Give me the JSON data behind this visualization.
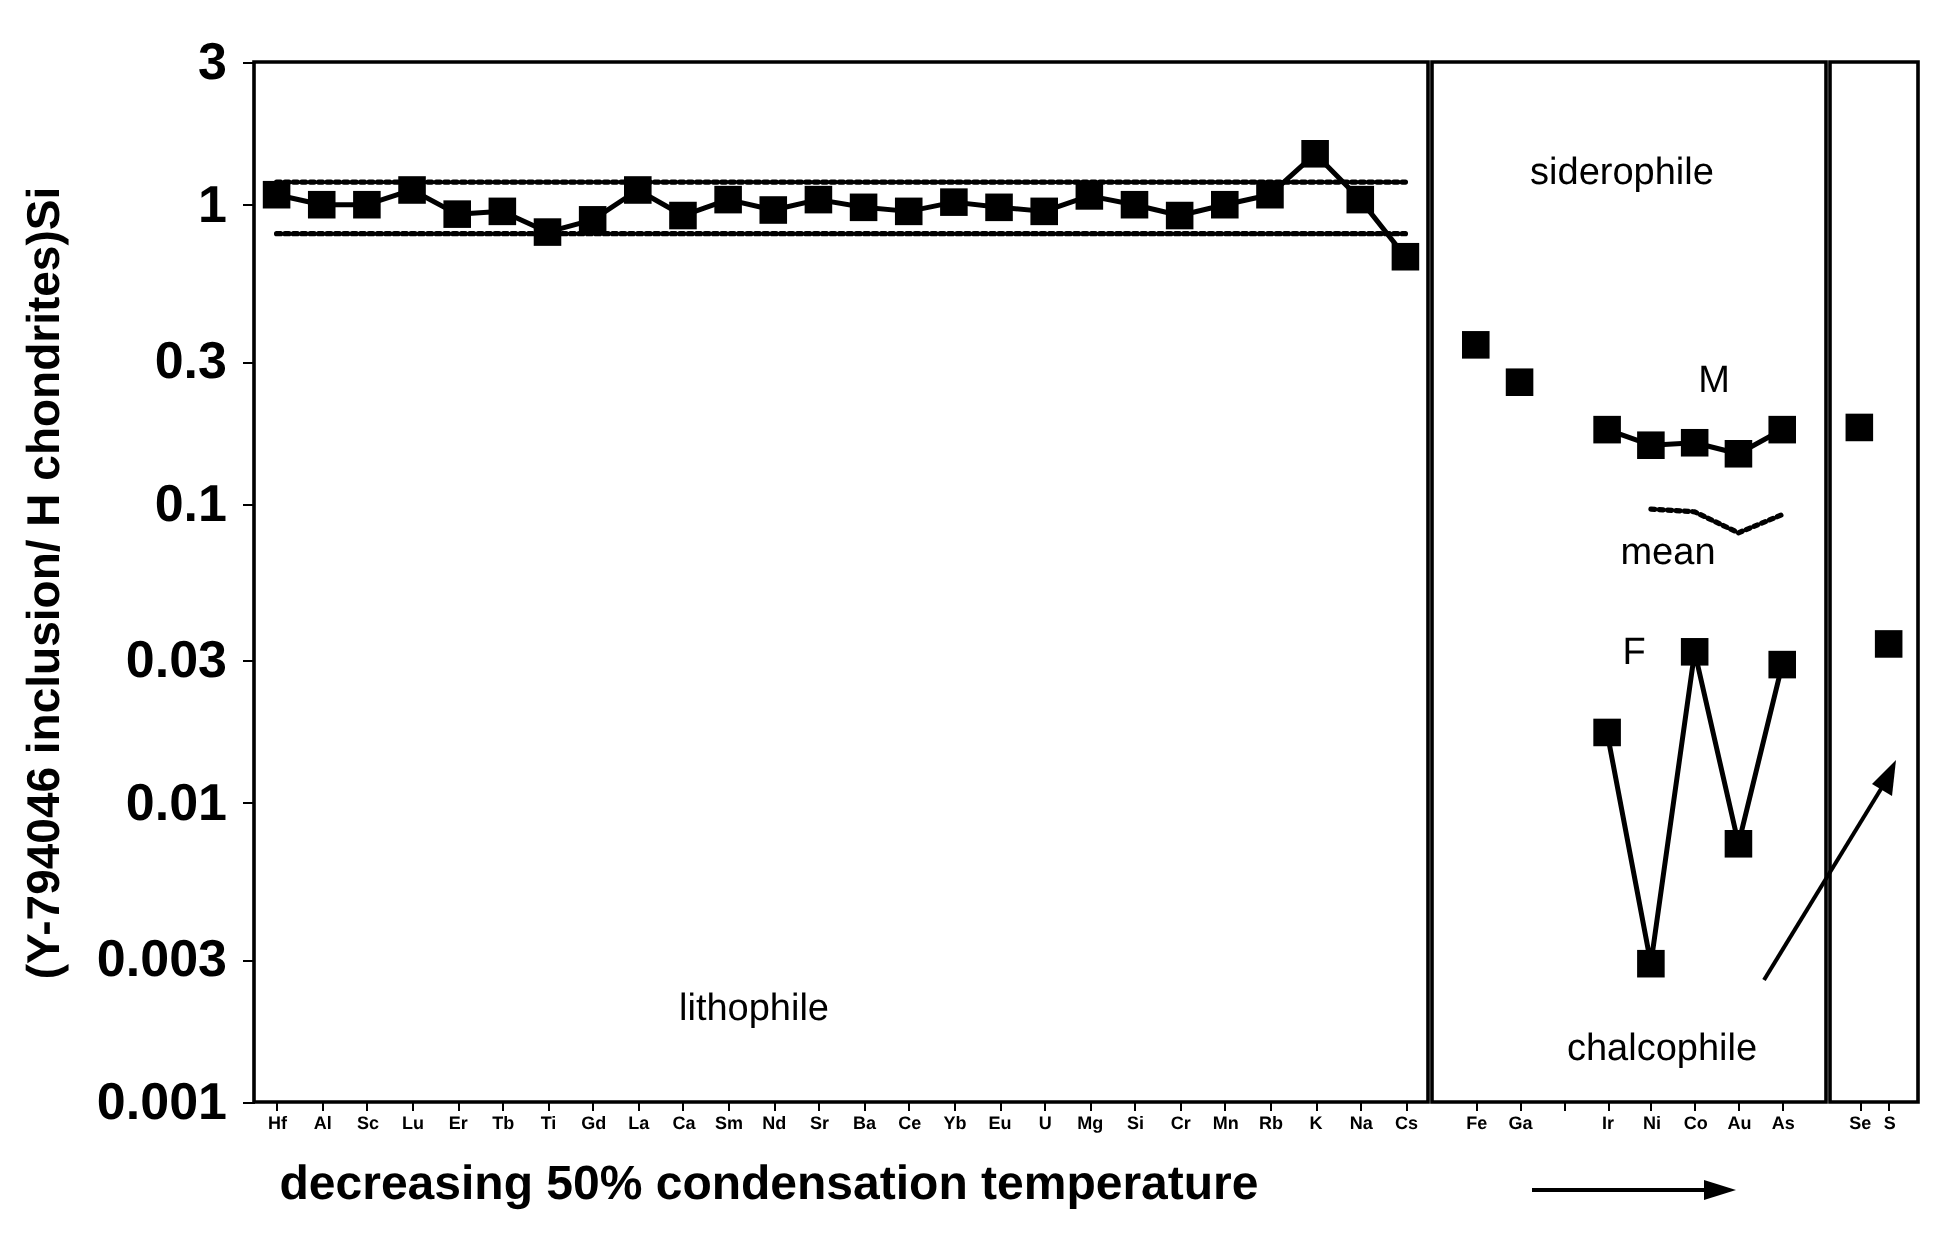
{
  "chart_data": [
    {
      "type": "line",
      "ylabel": "(Y-794046 inclusion/ H chondrites)Si",
      "xlabel": "decreasing 50% condensation temperature",
      "categories": [
        "Hf",
        "Al",
        "Sc",
        "Lu",
        "Er",
        "Tb",
        "Ti",
        "Gd",
        "La",
        "Ca",
        "Sm",
        "Nd",
        "Sr",
        "Ba",
        "Ce",
        "Yb",
        "Eu",
        "U",
        "Mg",
        "Si",
        "Cr",
        "Mn",
        "Rb",
        "K",
        "Na",
        "Cs"
      ],
      "ylim": [
        0.001,
        3
      ],
      "yticks": [
        0.001,
        0.003,
        0.01,
        0.03,
        0.1,
        0.3,
        1,
        3
      ],
      "log": true,
      "grid": false,
      "marker": "square",
      "line_style": "solid",
      "series": [
        {
          "color": "#000000",
          "values": [
            1.08,
            1.0,
            1.0,
            1.12,
            0.93,
            0.95,
            0.81,
            0.89,
            1.12,
            0.92,
            1.04,
            0.96,
            1.04,
            0.98,
            0.95,
            1.02,
            0.98,
            0.95,
            1.07,
            1.0,
            0.92,
            1.0,
            1.08,
            1.48,
            1.04,
            0.67
          ]
        },
        {
          "type": "line",
          "color": "#000000",
          "marker": "none",
          "line_style": "dotted",
          "values": [
            1.19,
            1.19,
            1.19,
            1.19,
            1.19,
            1.19,
            1.19,
            1.19,
            1.19,
            1.19,
            1.19,
            1.19,
            1.19,
            1.19,
            1.19,
            1.19,
            1.19,
            1.19,
            1.19,
            1.19,
            1.19,
            1.19,
            1.19,
            1.19,
            1.19,
            1.19
          ]
        },
        {
          "type": "line",
          "color": "#000000",
          "marker": "none",
          "line_style": "dotted",
          "values": [
            0.8,
            0.8,
            0.8,
            0.8,
            0.8,
            0.8,
            0.8,
            0.8,
            0.8,
            0.8,
            0.8,
            0.8,
            0.8,
            0.8,
            0.8,
            0.8,
            0.8,
            0.8,
            0.8,
            0.8,
            0.8,
            0.8,
            0.8,
            0.8,
            0.8,
            0.8
          ]
        }
      ],
      "annotations": [
        "lithophile"
      ]
    },
    {
      "type": "line",
      "categories": [
        "Fe",
        "Ga",
        null,
        "Ir",
        "Ni",
        "Co",
        "Au",
        "As"
      ],
      "ylim": [
        0.001,
        3
      ],
      "log": true,
      "grid": false,
      "marker": "square",
      "line_style": "solid",
      "tick_labels": "x",
      "series": [
        {
          "type": "scatter",
          "color": "#000000",
          "values": [
            0.34,
            0.255,
            null,
            null,
            null,
            null,
            null,
            null
          ]
        },
        {
          "color": "#000000",
          "values": [
            null,
            null,
            null,
            0.177,
            0.157,
            0.16,
            0.147,
            0.177
          ]
        },
        {
          "color": "#000000",
          "marker": "none",
          "line_style": "dotted",
          "values": [
            null,
            null,
            null,
            null,
            0.096,
            0.094,
            0.08,
            0.092
          ]
        },
        {
          "color": "#000000",
          "values": [
            null,
            null,
            null,
            0.0172,
            0.0029,
            0.032,
            0.0073,
            0.029
          ]
        }
      ],
      "annotations": [
        "siderophile",
        "M",
        "mean",
        "F",
        "chalcophile"
      ]
    },
    {
      "type": "scatter",
      "categories": [
        "Se",
        "S"
      ],
      "ylim": [
        0.001,
        3
      ],
      "log": true,
      "grid": false,
      "marker": "square",
      "tick_labels": "x",
      "series": [
        {
          "color": "#000000",
          "values": [
            0.18,
            0.034
          ]
        }
      ]
    }
  ]
}
